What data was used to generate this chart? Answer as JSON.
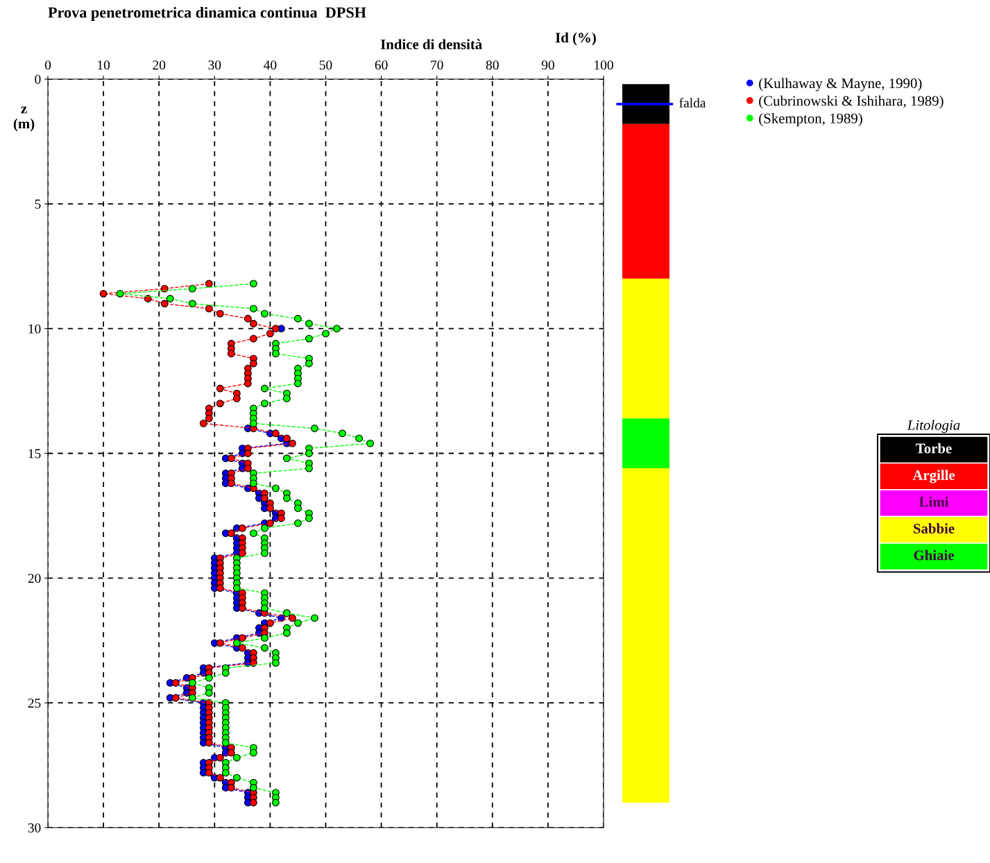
{
  "chart_data": [
    {
      "type": "line",
      "title": "Prova penetrometrica dinamica continua  DPSH",
      "xlabel": "Indice di densità",
      "ylabel": "z\n(m)",
      "annotations": [
        "Id (%)"
      ],
      "orientation": "horizontal",
      "x": [
        8.2,
        8.4,
        8.6,
        8.8,
        9.0,
        9.2,
        9.4,
        9.6,
        9.8,
        10.0,
        10.2,
        10.4,
        10.6,
        10.8,
        11.0,
        11.2,
        11.4,
        11.6,
        11.8,
        12.0,
        12.2,
        12.4,
        12.6,
        12.8,
        13.0,
        13.2,
        13.4,
        13.6,
        13.8,
        14.0,
        14.2,
        14.4,
        14.6,
        14.8,
        15.0,
        15.2,
        15.4,
        15.6,
        15.8,
        16.0,
        16.2,
        16.4,
        16.6,
        16.8,
        17.0,
        17.2,
        17.4,
        17.6,
        17.8,
        18.0,
        18.2,
        18.4,
        18.6,
        18.8,
        19.0,
        19.2,
        19.4,
        19.6,
        19.8,
        20.0,
        20.2,
        20.4,
        20.6,
        20.8,
        21.0,
        21.2,
        21.4,
        21.6,
        21.8,
        22.0,
        22.2,
        22.4,
        22.6,
        22.8,
        23.0,
        23.2,
        23.4,
        23.6,
        23.8,
        24.0,
        24.2,
        24.4,
        24.6,
        24.8,
        25.0,
        25.2,
        25.4,
        25.6,
        25.8,
        26.0,
        26.2,
        26.4,
        26.6,
        26.8,
        27.0,
        27.2,
        27.4,
        27.6,
        27.8,
        28.0,
        28.2,
        28.4,
        28.6,
        28.8,
        29.0
      ],
      "series": [
        {
          "name": "(Kulhaway & Mayne, 1990)",
          "color": "#0000ff",
          "values": [
            null,
            null,
            null,
            null,
            null,
            null,
            null,
            null,
            null,
            42,
            null,
            null,
            null,
            null,
            null,
            null,
            null,
            null,
            null,
            null,
            null,
            null,
            null,
            null,
            null,
            null,
            null,
            null,
            null,
            36,
            40,
            42,
            43,
            35,
            35,
            32,
            35,
            35,
            32,
            32,
            32,
            36,
            38,
            38,
            39,
            39,
            41,
            41,
            39,
            34,
            32,
            34,
            34,
            34,
            34,
            30,
            30,
            30,
            30,
            30,
            30,
            30,
            34,
            34,
            34,
            34,
            38,
            42,
            39,
            38,
            38,
            34,
            30,
            34,
            36,
            36,
            36,
            28,
            28,
            25,
            22,
            25,
            25,
            22,
            28,
            28,
            28,
            28,
            28,
            28,
            28,
            28,
            28,
            32,
            32,
            30,
            28,
            28,
            28,
            30,
            32,
            32,
            36,
            36,
            36
          ]
        },
        {
          "name": "(Cubrinowski & Ishihara, 1989)",
          "color": "#ff0000",
          "values": [
            29,
            21,
            10,
            18,
            21,
            29,
            31,
            36,
            37,
            41,
            40,
            37,
            33,
            33,
            33,
            37,
            37,
            36,
            36,
            36,
            36,
            31,
            34,
            34,
            31,
            29,
            29,
            29,
            28,
            37,
            41,
            43,
            44,
            36,
            36,
            33,
            36,
            36,
            33,
            33,
            33,
            37,
            39,
            39,
            40,
            40,
            42,
            42,
            40,
            35,
            33,
            35,
            35,
            35,
            35,
            31,
            31,
            31,
            31,
            31,
            31,
            31,
            35,
            35,
            35,
            35,
            39,
            44,
            40,
            39,
            39,
            35,
            31,
            35,
            37,
            37,
            37,
            29,
            29,
            26,
            23,
            26,
            26,
            23,
            29,
            29,
            29,
            29,
            29,
            29,
            29,
            29,
            29,
            33,
            33,
            31,
            29,
            29,
            29,
            31,
            33,
            33,
            37,
            37,
            37
          ]
        },
        {
          "name": "(Skempton, 1989)",
          "color": "#00ff00",
          "values": [
            37,
            26,
            13,
            22,
            26,
            37,
            39,
            45,
            47,
            52,
            50,
            47,
            41,
            41,
            41,
            47,
            47,
            45,
            45,
            45,
            45,
            39,
            43,
            43,
            39,
            37,
            37,
            37,
            37,
            48,
            53,
            56,
            58,
            47,
            47,
            43,
            47,
            47,
            37,
            37,
            37,
            41,
            43,
            43,
            45,
            45,
            47,
            47,
            45,
            39,
            37,
            39,
            39,
            39,
            39,
            34,
            34,
            34,
            34,
            34,
            34,
            34,
            39,
            39,
            39,
            39,
            43,
            48,
            45,
            43,
            43,
            39,
            34,
            39,
            41,
            41,
            41,
            32,
            32,
            29,
            26,
            29,
            29,
            26,
            32,
            32,
            32,
            32,
            32,
            32,
            32,
            32,
            32,
            37,
            37,
            34,
            32,
            32,
            32,
            34,
            37,
            37,
            41,
            41,
            41
          ]
        }
      ],
      "xlim": [
        0,
        100
      ],
      "xticks": [
        0,
        10,
        20,
        30,
        40,
        50,
        60,
        70,
        80,
        90,
        100
      ],
      "ylim": [
        30,
        0
      ],
      "yticks": [
        0,
        5,
        10,
        15,
        20,
        25,
        30
      ],
      "grid": true,
      "legend": "top right",
      "marker": "circle",
      "line_style": "dashed"
    },
    {
      "type": "other",
      "legend_title": "Litologia",
      "categories": [
        "Torbe",
        "Argille",
        "Limi",
        "Sabbie",
        "Ghiaie"
      ],
      "colors": [
        "#000000",
        "#ff0000",
        "#ff00ff",
        "#ffff00",
        "#00ff00"
      ],
      "annotations": [
        "falda"
      ]
    }
  ]
}
